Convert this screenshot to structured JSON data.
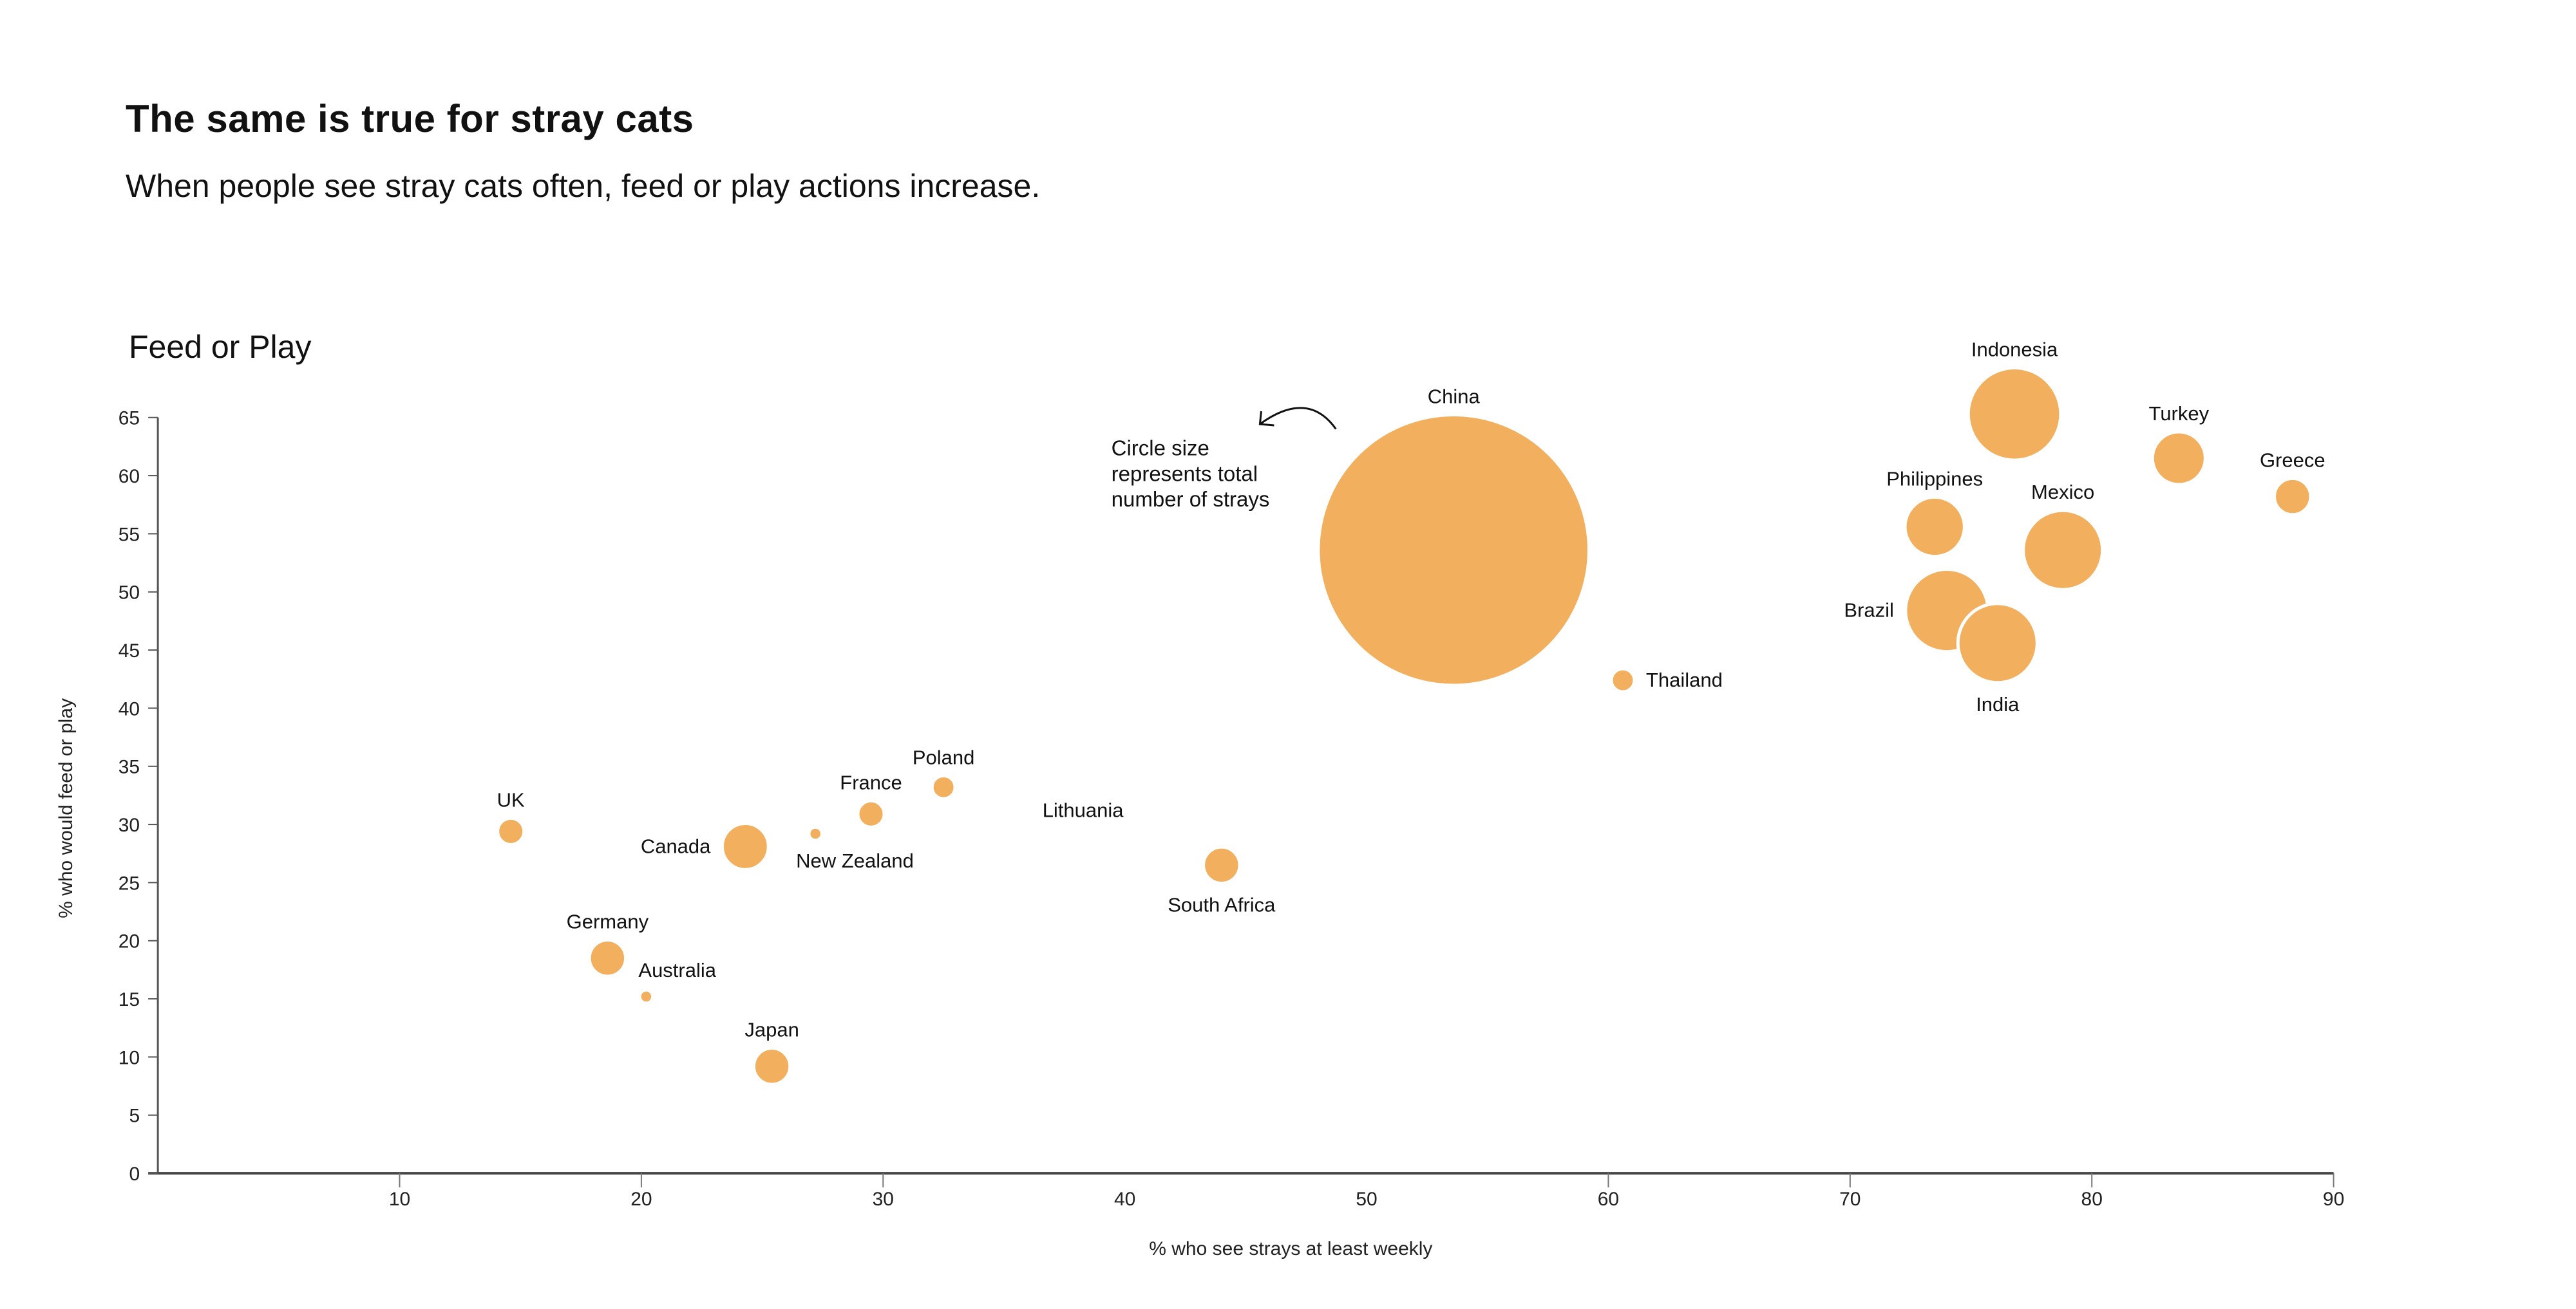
{
  "header": {
    "title": "The same is true for stray cats",
    "subtitle": "When people see stray cats often, feed or play actions increase."
  },
  "chart_data": {
    "type": "scatter",
    "title": "Feed or Play",
    "xlabel": "% who see strays at least weekly",
    "ylabel": "% who would feed or play",
    "xlim": [
      0,
      90
    ],
    "ylim": [
      0,
      65
    ],
    "xticks": [
      10,
      20,
      30,
      40,
      50,
      60,
      70,
      80,
      90
    ],
    "yticks": [
      0,
      5,
      10,
      15,
      20,
      25,
      30,
      35,
      40,
      45,
      50,
      55,
      60,
      65
    ],
    "grid": false,
    "bubble_color": "#F2AF5E",
    "size_note": "Circle size represents total number of strays",
    "size_note_lines": [
      "Circle size",
      "represents total",
      "number of strays"
    ],
    "points": [
      {
        "label": "China",
        "x": 53.6,
        "y": 53.6,
        "size": 82,
        "label_pos": "top"
      },
      {
        "label": "Indonesia",
        "x": 76.8,
        "y": 65.3,
        "size": 28,
        "label_pos": "top"
      },
      {
        "label": "Turkey",
        "x": 83.6,
        "y": 61.5,
        "size": 16,
        "label_pos": "top"
      },
      {
        "label": "Greece",
        "x": 88.3,
        "y": 58.2,
        "size": 11,
        "label_pos": "top"
      },
      {
        "label": "Philippines",
        "x": 73.5,
        "y": 55.6,
        "size": 18,
        "label_pos": "top"
      },
      {
        "label": "Mexico",
        "x": 78.8,
        "y": 53.6,
        "size": 24,
        "label_pos": "top"
      },
      {
        "label": "Brazil",
        "x": 74.0,
        "y": 48.4,
        "size": 25,
        "label_pos": "left"
      },
      {
        "label": "India",
        "x": 76.1,
        "y": 45.6,
        "size": 24,
        "label_pos": "bottom"
      },
      {
        "label": "Thailand",
        "x": 60.6,
        "y": 42.4,
        "size": 7,
        "label_pos": "right"
      },
      {
        "label": "UK",
        "x": 14.6,
        "y": 29.4,
        "size": 8,
        "label_pos": "top"
      },
      {
        "label": "Canada",
        "x": 24.3,
        "y": 28.1,
        "size": 14,
        "label_pos": "left"
      },
      {
        "label": "New Zealand",
        "x": 27.2,
        "y": 29.2,
        "size": 4,
        "label_pos": "bottom-right"
      },
      {
        "label": "France",
        "x": 29.5,
        "y": 30.9,
        "size": 8,
        "label_pos": "top"
      },
      {
        "label": "Poland",
        "x": 32.5,
        "y": 33.2,
        "size": 7,
        "label_pos": "top"
      },
      {
        "label": "Lithuania",
        "x": 38.8,
        "y": 29.5,
        "size": 1,
        "label_pos": "top-left"
      },
      {
        "label": "South Africa",
        "x": 44.0,
        "y": 26.5,
        "size": 11,
        "label_pos": "bottom"
      },
      {
        "label": "Germany",
        "x": 18.6,
        "y": 18.5,
        "size": 11,
        "label_pos": "top"
      },
      {
        "label": "Australia",
        "x": 20.2,
        "y": 15.2,
        "size": 4,
        "label_pos": "top-right"
      },
      {
        "label": "Japan",
        "x": 25.4,
        "y": 9.2,
        "size": 11,
        "label_pos": "top"
      }
    ]
  }
}
